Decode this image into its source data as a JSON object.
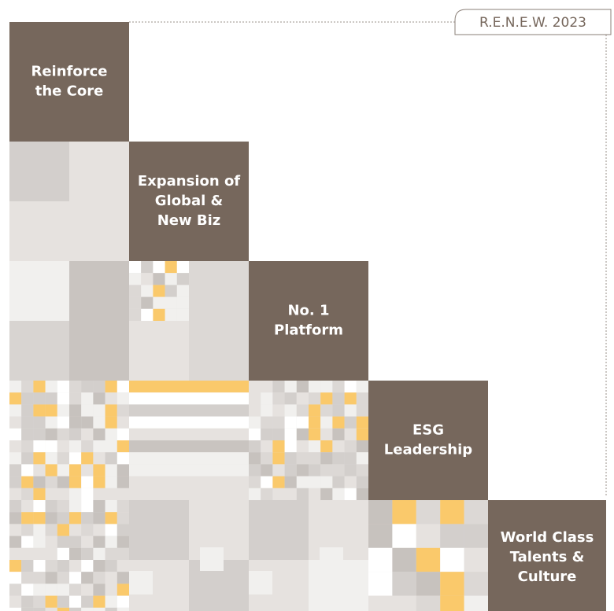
{
  "tag": "R.E.N.E.W. 2023",
  "pillars": [
    {
      "lines": [
        "Reinforce",
        "the Core"
      ]
    },
    {
      "lines": [
        "Expansion of",
        "Global &",
        "New Biz"
      ]
    },
    {
      "lines": [
        "No. 1",
        "Platform"
      ]
    },
    {
      "lines": [
        "ESG",
        "Leadership"
      ]
    },
    {
      "lines": [
        "World Class",
        "Talents &",
        "Culture"
      ]
    }
  ]
}
